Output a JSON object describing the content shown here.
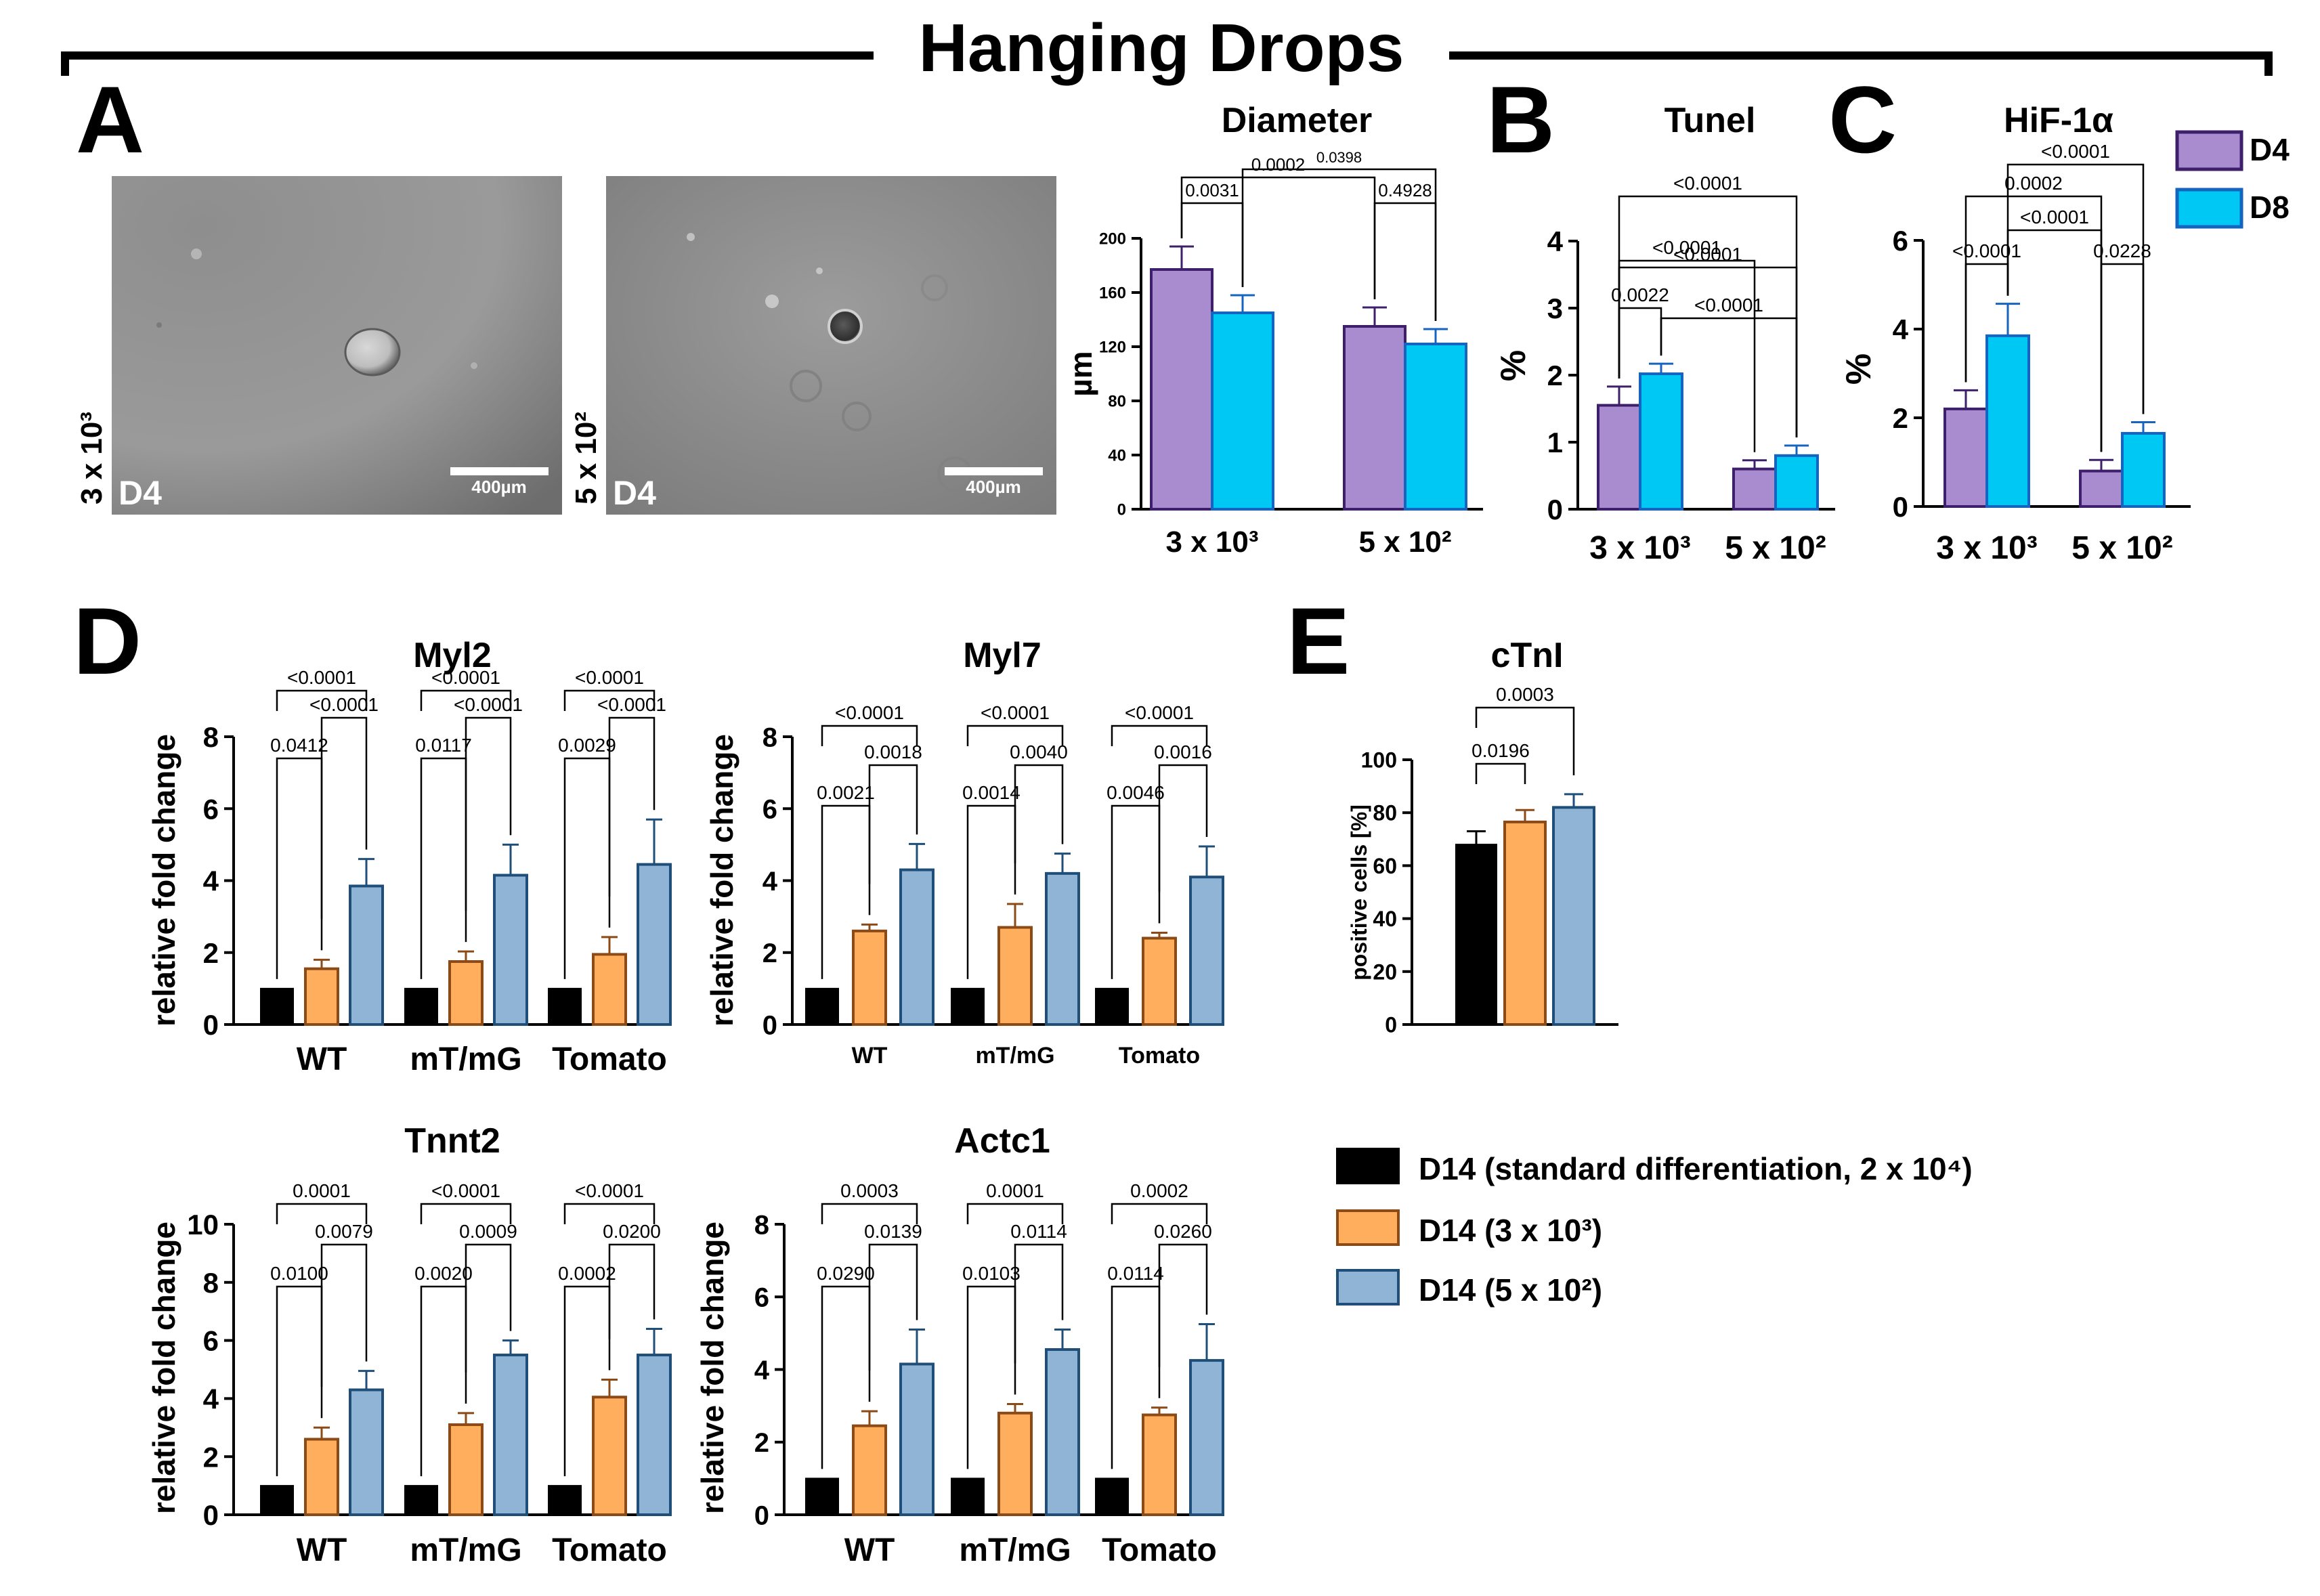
{
  "page_title": "Hanging Drops",
  "panel_letters": {
    "a": "A",
    "b": "B",
    "c": "C",
    "d": "D",
    "e": "E"
  },
  "colors": {
    "d4_fill": "#A98BD0",
    "d4_stroke": "#3E1F6B",
    "d8_fill": "#00C8F5",
    "d8_stroke": "#1565C0",
    "black_fill": "#000000",
    "orange_fill": "#FFAE5E",
    "orange_stroke": "#8B4A16",
    "blue_fill": "#8FB4D6",
    "blue_stroke": "#1F4E79"
  },
  "micrographs": [
    {
      "side_label": "3 x 10³",
      "day_label": "D4",
      "scale_label": "400µm"
    },
    {
      "side_label": "5 x 10²",
      "day_label": "D4",
      "scale_label": "400µm"
    }
  ],
  "legend_top": [
    {
      "label": "D4",
      "color_key": "d4"
    },
    {
      "label": "D8",
      "color_key": "d8"
    }
  ],
  "legend_bottom": [
    {
      "label": "D14 (standard differentiation, 2 x 10⁴)",
      "color_key": "black"
    },
    {
      "label": "D14 (3 x 10³)",
      "color_key": "orange"
    },
    {
      "label": "D14 (5 x 10²)",
      "color_key": "blue"
    }
  ],
  "chart_data": [
    {
      "id": "diameter",
      "type": "bar",
      "title": "Diameter",
      "ylabel": "µm",
      "ylim": [
        0,
        200
      ],
      "yticks": [
        "0",
        "40",
        "80",
        "120",
        "160",
        "200"
      ],
      "categories": [
        "3 x 10³",
        "5 x 10²"
      ],
      "series": [
        {
          "name": "D4",
          "values": [
            177,
            135
          ],
          "errors": [
            17,
            14
          ]
        },
        {
          "name": "D8",
          "values": [
            145,
            122
          ],
          "errors": [
            13,
            11
          ]
        }
      ],
      "pvalues": [
        "0.0031",
        "0.4928",
        "0.0002",
        "0.0398"
      ]
    },
    {
      "id": "tunel",
      "type": "bar",
      "title": "Tunel",
      "ylabel": "%",
      "ylim": [
        0,
        4
      ],
      "yticks": [
        "0",
        "1",
        "2",
        "3",
        "4"
      ],
      "categories": [
        "3 x 10³",
        "5 x 10²"
      ],
      "series": [
        {
          "name": "D4",
          "values": [
            1.55,
            0.6
          ],
          "errors": [
            0.28,
            0.13
          ]
        },
        {
          "name": "D8",
          "values": [
            2.02,
            0.8
          ],
          "errors": [
            0.15,
            0.15
          ]
        }
      ],
      "pvalues": [
        "0.0022",
        "<0.0001",
        "<0.0001",
        "<0.0001",
        "<0.0001"
      ]
    },
    {
      "id": "hif",
      "type": "bar",
      "title": "HiF-1α",
      "ylabel": "%",
      "ylim": [
        0,
        6
      ],
      "yticks": [
        "0",
        "2",
        "4",
        "6"
      ],
      "categories": [
        "3 x 10³",
        "5 x 10²"
      ],
      "series": [
        {
          "name": "D4",
          "values": [
            2.2,
            0.8
          ],
          "errors": [
            0.42,
            0.25
          ]
        },
        {
          "name": "D8",
          "values": [
            3.85,
            1.65
          ],
          "errors": [
            0.72,
            0.25
          ]
        }
      ],
      "pvalues": [
        "<0.0001",
        "0.0228",
        "<0.0001",
        "0.0002",
        "<0.0001"
      ]
    },
    {
      "id": "myl2",
      "type": "bar",
      "title": "Myl2",
      "ylabel": "relative fold change",
      "ylim": [
        0,
        8
      ],
      "yticks": [
        "0",
        "2",
        "4",
        "6",
        "8"
      ],
      "categories": [
        "WT",
        "mT/mG",
        "Tomato"
      ],
      "series": [
        {
          "name": "D14 (standard differentiation, 2 x 10⁴)",
          "values": [
            1,
            1,
            1
          ],
          "errors": [
            0,
            0,
            0
          ]
        },
        {
          "name": "D14 (3 x 10³)",
          "values": [
            1.55,
            1.75,
            1.95
          ],
          "errors": [
            0.25,
            0.28,
            0.48
          ]
        },
        {
          "name": "D14 (5 x 10²)",
          "values": [
            3.85,
            4.15,
            4.45
          ],
          "errors": [
            0.75,
            0.85,
            1.25
          ]
        }
      ],
      "pvalues": [
        [
          "0.0412",
          "<0.0001",
          "<0.0001"
        ],
        [
          "0.0117",
          "<0.0001",
          "<0.0001"
        ],
        [
          "0.0029",
          "<0.0001",
          "<0.0001"
        ]
      ]
    },
    {
      "id": "myl7",
      "type": "bar",
      "title": "Myl7",
      "ylabel": "relative fold change",
      "ylim": [
        0,
        8
      ],
      "yticks": [
        "0",
        "2",
        "4",
        "6",
        "8"
      ],
      "categories": [
        "WT",
        "mT/mG",
        "Tomato"
      ],
      "series": [
        {
          "name": "D14 (standard differentiation, 2 x 10⁴)",
          "values": [
            1,
            1,
            1
          ],
          "errors": [
            0,
            0,
            0
          ]
        },
        {
          "name": "D14 (3 x 10³)",
          "values": [
            2.6,
            2.7,
            2.4
          ],
          "errors": [
            0.18,
            0.65,
            0.15
          ]
        },
        {
          "name": "D14 (5 x 10²)",
          "values": [
            4.3,
            4.2,
            4.1
          ],
          "errors": [
            0.72,
            0.55,
            0.85
          ]
        }
      ],
      "pvalues": [
        [
          "0.0021",
          "0.0018",
          "<0.0001"
        ],
        [
          "0.0014",
          "0.0040",
          "<0.0001"
        ],
        [
          "0.0046",
          "0.0016",
          "<0.0001"
        ]
      ]
    },
    {
      "id": "tnnt2",
      "type": "bar",
      "title": "Tnnt2",
      "ylabel": "relative fold change",
      "ylim": [
        0,
        10
      ],
      "yticks": [
        "0",
        "2",
        "4",
        "6",
        "8",
        "10"
      ],
      "categories": [
        "WT",
        "mT/mG",
        "Tomato"
      ],
      "series": [
        {
          "name": "D14 (standard differentiation, 2 x 10⁴)",
          "values": [
            1,
            1,
            1
          ],
          "errors": [
            0,
            0,
            0
          ]
        },
        {
          "name": "D14 (3 x 10³)",
          "values": [
            2.6,
            3.1,
            4.05
          ],
          "errors": [
            0.4,
            0.4,
            0.6
          ]
        },
        {
          "name": "D14 (5 x 10²)",
          "values": [
            4.3,
            5.5,
            5.5
          ],
          "errors": [
            0.65,
            0.5,
            0.9
          ]
        }
      ],
      "pvalues": [
        [
          "0.0100",
          "0.0079",
          "0.0001"
        ],
        [
          "0.0020",
          "0.0009",
          "<0.0001"
        ],
        [
          "0.0002",
          "0.0200",
          "<0.0001"
        ]
      ]
    },
    {
      "id": "actc1",
      "type": "bar",
      "title": "Actc1",
      "ylabel": "relative fold change",
      "ylim": [
        0,
        8
      ],
      "yticks": [
        "0",
        "2",
        "4",
        "6",
        "8"
      ],
      "categories": [
        "WT",
        "mT/mG",
        "Tomato"
      ],
      "series": [
        {
          "name": "D14 (standard differentiation, 2 x 10⁴)",
          "values": [
            1,
            1,
            1
          ],
          "errors": [
            0,
            0,
            0
          ]
        },
        {
          "name": "D14 (3 x 10³)",
          "values": [
            2.45,
            2.8,
            2.75
          ],
          "errors": [
            0.4,
            0.25,
            0.2
          ]
        },
        {
          "name": "D14 (5 x 10²)",
          "values": [
            4.15,
            4.55,
            4.25
          ],
          "errors": [
            0.95,
            0.55,
            1.0
          ]
        }
      ],
      "pvalues": [
        [
          "0.0290",
          "0.0139",
          "0.0003"
        ],
        [
          "0.0103",
          "0.0114",
          "0.0001"
        ],
        [
          "0.0114",
          "0.0260",
          "0.0002"
        ]
      ]
    },
    {
      "id": "ctni",
      "type": "bar",
      "title": "cTnI",
      "ylabel": "positive cells [%]",
      "ylim": [
        0,
        100
      ],
      "yticks": [
        "0",
        "20",
        "40",
        "60",
        "80",
        "100"
      ],
      "categories": [
        "D14 (standard differentiation, 2 x 10⁴)",
        "D14 (3 x 10³)",
        "D14 (5 x 10²)"
      ],
      "values": [
        68,
        76.5,
        82
      ],
      "errors": [
        5,
        4.5,
        5
      ],
      "pvalues": [
        "0.0196",
        "0.0003"
      ]
    }
  ]
}
